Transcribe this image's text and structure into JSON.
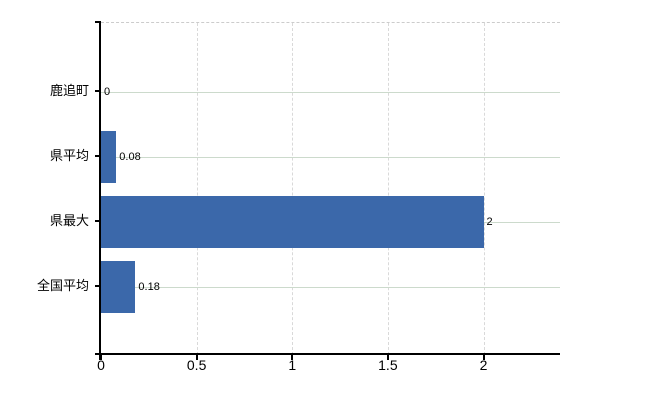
{
  "chart_data": {
    "type": "bar",
    "orientation": "horizontal",
    "categories": [
      "鹿追町",
      "県平均",
      "県最大",
      "全国平均"
    ],
    "values": [
      0,
      0.08,
      2,
      0.18
    ],
    "value_labels": [
      "0",
      "0.08",
      "2",
      "0.18"
    ],
    "x_ticks": [
      0,
      0.5,
      1,
      1.5,
      2
    ],
    "x_tick_labels": [
      "0",
      "0.5",
      "1",
      "1.5",
      "2"
    ],
    "xlim": [
      0,
      2.4
    ],
    "grid": true,
    "legend": false,
    "colors": {
      "bar": "#3b68aa",
      "grid_horizontal": "#ccdacc",
      "grid_vertical": "#d9d9d9",
      "plot_top_border": "#cccccc",
      "axis": "#000000",
      "text": "#000000"
    }
  }
}
